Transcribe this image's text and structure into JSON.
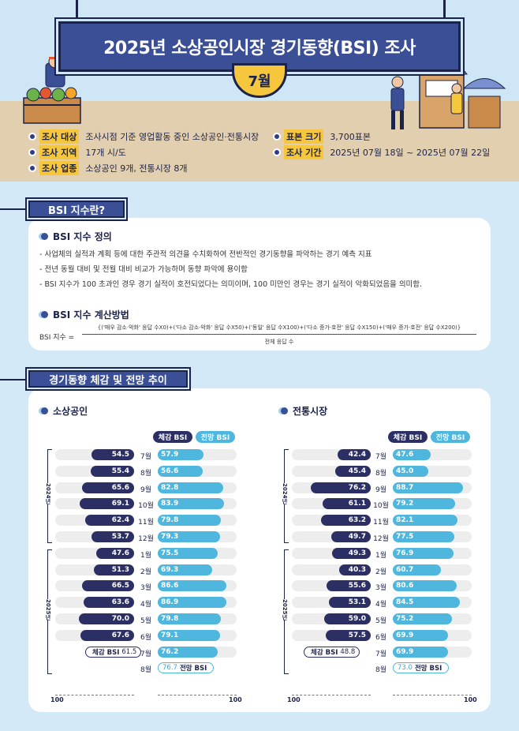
{
  "header": {
    "title": "2025년 소상공인시장 경기동향(BSI) 조사",
    "month": "7월"
  },
  "info": {
    "target_key": "조사 대상",
    "target_val": "조사시점 기준 영업활동 중인 소상공인·전통시장",
    "sample_key": "표본 크기",
    "sample_val": "3,700표본",
    "region_key": "조사 지역",
    "region_val": "17개 시/도",
    "period_key": "조사 기간",
    "period_val": "2025년 07월 18일 ~ 2025년 07월 22일",
    "industry_key": "조사 업종",
    "industry_val": "소상공인 9개, 전통시장 8개"
  },
  "bsi_section": {
    "heading": "BSI 지수란?",
    "def_title": "BSI 지수 정의",
    "bullets": [
      "- 사업체의 실적과 계획 등에 대한 주관적 의견을 수치화하여 전반적인 경기동향을 파악하는 경기 예측 지표",
      "- 전년 동월 대비 및 전월 대비 비교가 가능하며 동향 파악에 용이함",
      "- BSI 지수가 100 초과인 경우 경기 실적이 호전되었다는 의미이며, 100 미만인 경우는 경기 실적이 악화되었음을 의미함."
    ],
    "calc_title": "BSI 지수 계산방법",
    "formula_label": "BSI 지수 =",
    "formula_numerator": "{('매우 감소·악화' 응답 수X0)+('다소 감소·악화' 응답 수X50)+('동일' 응답 수X100)+('다소 증가·호전' 응답 수X150)+('매우 증가·호전' 응답 수X200)}",
    "formula_denominator": "전체 응답 수"
  },
  "trend_section": {
    "heading": "경기동향 체감 및 전망 추이",
    "legend_actual": "체감 BSI",
    "legend_forecast": "전망 BSI",
    "year_2024": "2024년",
    "year_2025": "2025년",
    "axis_left": "100",
    "axis_right": "100"
  },
  "chart_data": [
    {
      "type": "bar",
      "title": "소상공인",
      "categories": [
        "7월",
        "8월",
        "9월",
        "10월",
        "11월",
        "12월",
        "1월",
        "2월",
        "3월",
        "4월",
        "5월",
        "6월",
        "7월",
        "8월"
      ],
      "series": [
        {
          "name": "체감 BSI",
          "values": [
            54.5,
            55.4,
            65.6,
            69.1,
            62.4,
            53.7,
            47.6,
            51.3,
            66.5,
            63.6,
            70.0,
            67.6,
            61.5,
            null
          ]
        },
        {
          "name": "전망 BSI",
          "values": [
            57.9,
            56.6,
            82.8,
            83.9,
            79.8,
            79.3,
            75.5,
            69.3,
            86.6,
            86.9,
            79.8,
            79.1,
            76.2,
            76.7
          ]
        }
      ],
      "value_labels_actual": [
        "54.5",
        "55.4",
        "65.6",
        "69.1",
        "62.4",
        "53.7",
        "47.6",
        "51.3",
        "66.5",
        "63.6",
        "70.0",
        "67.6",
        "61.5",
        ""
      ],
      "value_labels_forecast": [
        "57.9",
        "56.6",
        "82.8",
        "83.9",
        "79.8",
        "79.3",
        "75.5",
        "69.3",
        "86.6",
        "86.9",
        "79.8",
        "79.1",
        "76.2",
        "76.7"
      ],
      "ylim": [
        0,
        100
      ]
    },
    {
      "type": "bar",
      "title": "전통시장",
      "categories": [
        "7월",
        "8월",
        "9월",
        "10월",
        "11월",
        "12월",
        "1월",
        "2월",
        "3월",
        "4월",
        "5월",
        "6월",
        "7월",
        "8월"
      ],
      "series": [
        {
          "name": "체감 BSI",
          "values": [
            42.4,
            45.4,
            76.2,
            61.1,
            63.2,
            49.7,
            49.3,
            40.3,
            55.6,
            53.1,
            59.0,
            57.5,
            48.8,
            null
          ]
        },
        {
          "name": "전망 BSI",
          "values": [
            47.6,
            45.0,
            88.7,
            79.2,
            82.1,
            77.5,
            76.9,
            60.7,
            80.6,
            84.5,
            75.2,
            69.9,
            69.9,
            73.0
          ]
        }
      ],
      "value_labels_actual": [
        "42.4",
        "45.4",
        "76.2",
        "61.1",
        "63.2",
        "49.7",
        "49.3",
        "40.3",
        "55.6",
        "53.1",
        "59.0",
        "57.5",
        "48.8",
        ""
      ],
      "value_labels_forecast": [
        "47.6",
        "45.0",
        "88.7",
        "79.2",
        "82.1",
        "77.5",
        "76.9",
        "60.7",
        "80.6",
        "84.5",
        "75.2",
        "69.9",
        "69.9",
        "73.0"
      ],
      "ylim": [
        0,
        100
      ]
    }
  ]
}
